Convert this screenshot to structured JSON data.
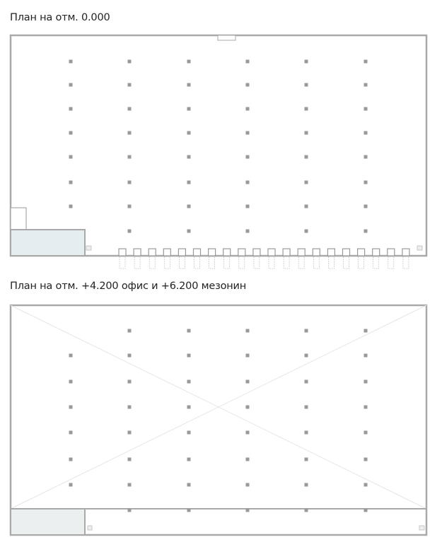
{
  "plans": [
    {
      "title": "План на отм. 0.000"
    },
    {
      "title": "План на отм. +4.200 офис и +6.200 мезонин"
    }
  ],
  "colors": {
    "wall": "#a9a9a9",
    "column": "#8f8f8f",
    "shaded_room": "#e6edf1",
    "office_room": "#ebefef"
  }
}
